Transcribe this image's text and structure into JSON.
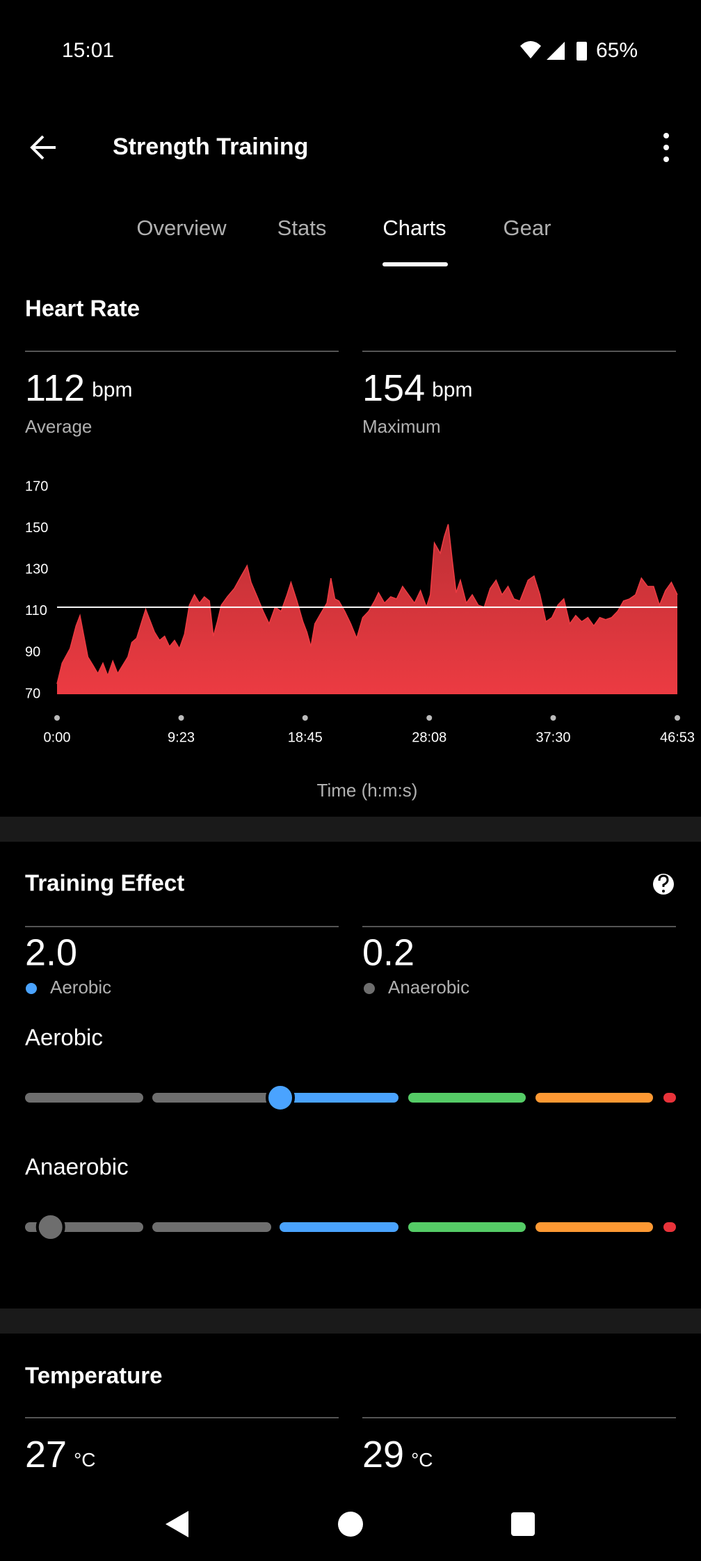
{
  "status": {
    "time": "15:01",
    "battery": "65%"
  },
  "header": {
    "title": "Strength Training"
  },
  "tabs": [
    "Overview",
    "Stats",
    "Charts",
    "Gear"
  ],
  "heart_rate": {
    "average": {
      "value": 112,
      "unit": "bpm",
      "label": "Average"
    },
    "maximum": {
      "value": 154,
      "unit": "bpm",
      "label": "Maximum"
    }
  },
  "chart_data": {
    "type": "area",
    "title": "Heart Rate",
    "xlabel": "Time (h:m:s)",
    "color": "#ec3b42",
    "x": [
      0,
      23,
      59,
      86,
      104,
      122,
      140,
      163,
      185,
      208,
      230,
      253,
      275,
      298,
      321,
      339,
      361,
      384,
      402,
      420,
      442,
      465,
      488,
      510,
      533,
      555,
      578,
      600,
      623,
      646,
      668,
      691,
      709,
      727,
      745,
      772,
      804,
      835,
      862,
      880,
      908,
      935,
      962,
      989,
      1016,
      1043,
      1061,
      1088,
      1115,
      1133,
      1151,
      1169,
      1196,
      1224,
      1242,
      1260,
      1278,
      1305,
      1332,
      1359,
      1386,
      1413,
      1440,
      1458,
      1485,
      1513,
      1540,
      1567,
      1594,
      1621,
      1648,
      1675,
      1693,
      1711,
      1738,
      1756,
      1774,
      1792,
      1810,
      1829,
      1856,
      1883,
      1910,
      1937,
      1964,
      1991,
      2018,
      2045,
      2072,
      2099,
      2136,
      2163,
      2190,
      2217,
      2244,
      2271,
      2298,
      2325,
      2352,
      2379,
      2407,
      2434,
      2461,
      2488,
      2515,
      2542,
      2569,
      2596,
      2623,
      2650,
      2678,
      2705,
      2732,
      2759,
      2786,
      2813
    ],
    "values": [
      75,
      85,
      92,
      103,
      108,
      98,
      88,
      84,
      80,
      85,
      79,
      86,
      80,
      84,
      88,
      95,
      97,
      105,
      111,
      106,
      100,
      96,
      98,
      93,
      96,
      92,
      99,
      113,
      118,
      114,
      117,
      115,
      98,
      105,
      113,
      117,
      121,
      127,
      132,
      124,
      117,
      110,
      104,
      112,
      110,
      118,
      124,
      115,
      105,
      100,
      93,
      104,
      109,
      114,
      126,
      116,
      115,
      110,
      104,
      97,
      107,
      110,
      115,
      119,
      114,
      117,
      116,
      122,
      118,
      114,
      120,
      112,
      118,
      143,
      138,
      146,
      152,
      135,
      119,
      125,
      114,
      118,
      113,
      112,
      121,
      125,
      118,
      122,
      116,
      115,
      125,
      127,
      118,
      105,
      107,
      113,
      116,
      104,
      108,
      105,
      107,
      103,
      107,
      106,
      107,
      110,
      115,
      116,
      118,
      126,
      122,
      122,
      113,
      120,
      124,
      118
    ],
    "xlim": [
      0,
      2813
    ],
    "ylim": [
      70,
      170
    ],
    "yticks": [
      70,
      90,
      110,
      130,
      150,
      170
    ],
    "xticks": [
      {
        "value": 0,
        "label": "0:00"
      },
      {
        "value": 563,
        "label": "9:23"
      },
      {
        "value": 1125,
        "label": "18:45"
      },
      {
        "value": 1688,
        "label": "28:08"
      },
      {
        "value": 2250,
        "label": "37:30"
      },
      {
        "value": 2813,
        "label": "46:53"
      }
    ]
  },
  "training_effect": {
    "title": "Training Effect",
    "aerobic": {
      "value": 2.0,
      "value_label": "2.0",
      "label": "Aerobic",
      "color": "#4aa3ff"
    },
    "anaerobic": {
      "value": 0.2,
      "label": "Anaerobic",
      "color": "#6e6e6e"
    },
    "aerobic_scale_title": "Aerobic",
    "anaerobic_scale_title": "Anaerobic"
  },
  "temperature": {
    "title": "Temperature",
    "min": {
      "value": 27,
      "unit": "°C"
    },
    "max": {
      "value": 29,
      "unit": "°C"
    }
  }
}
